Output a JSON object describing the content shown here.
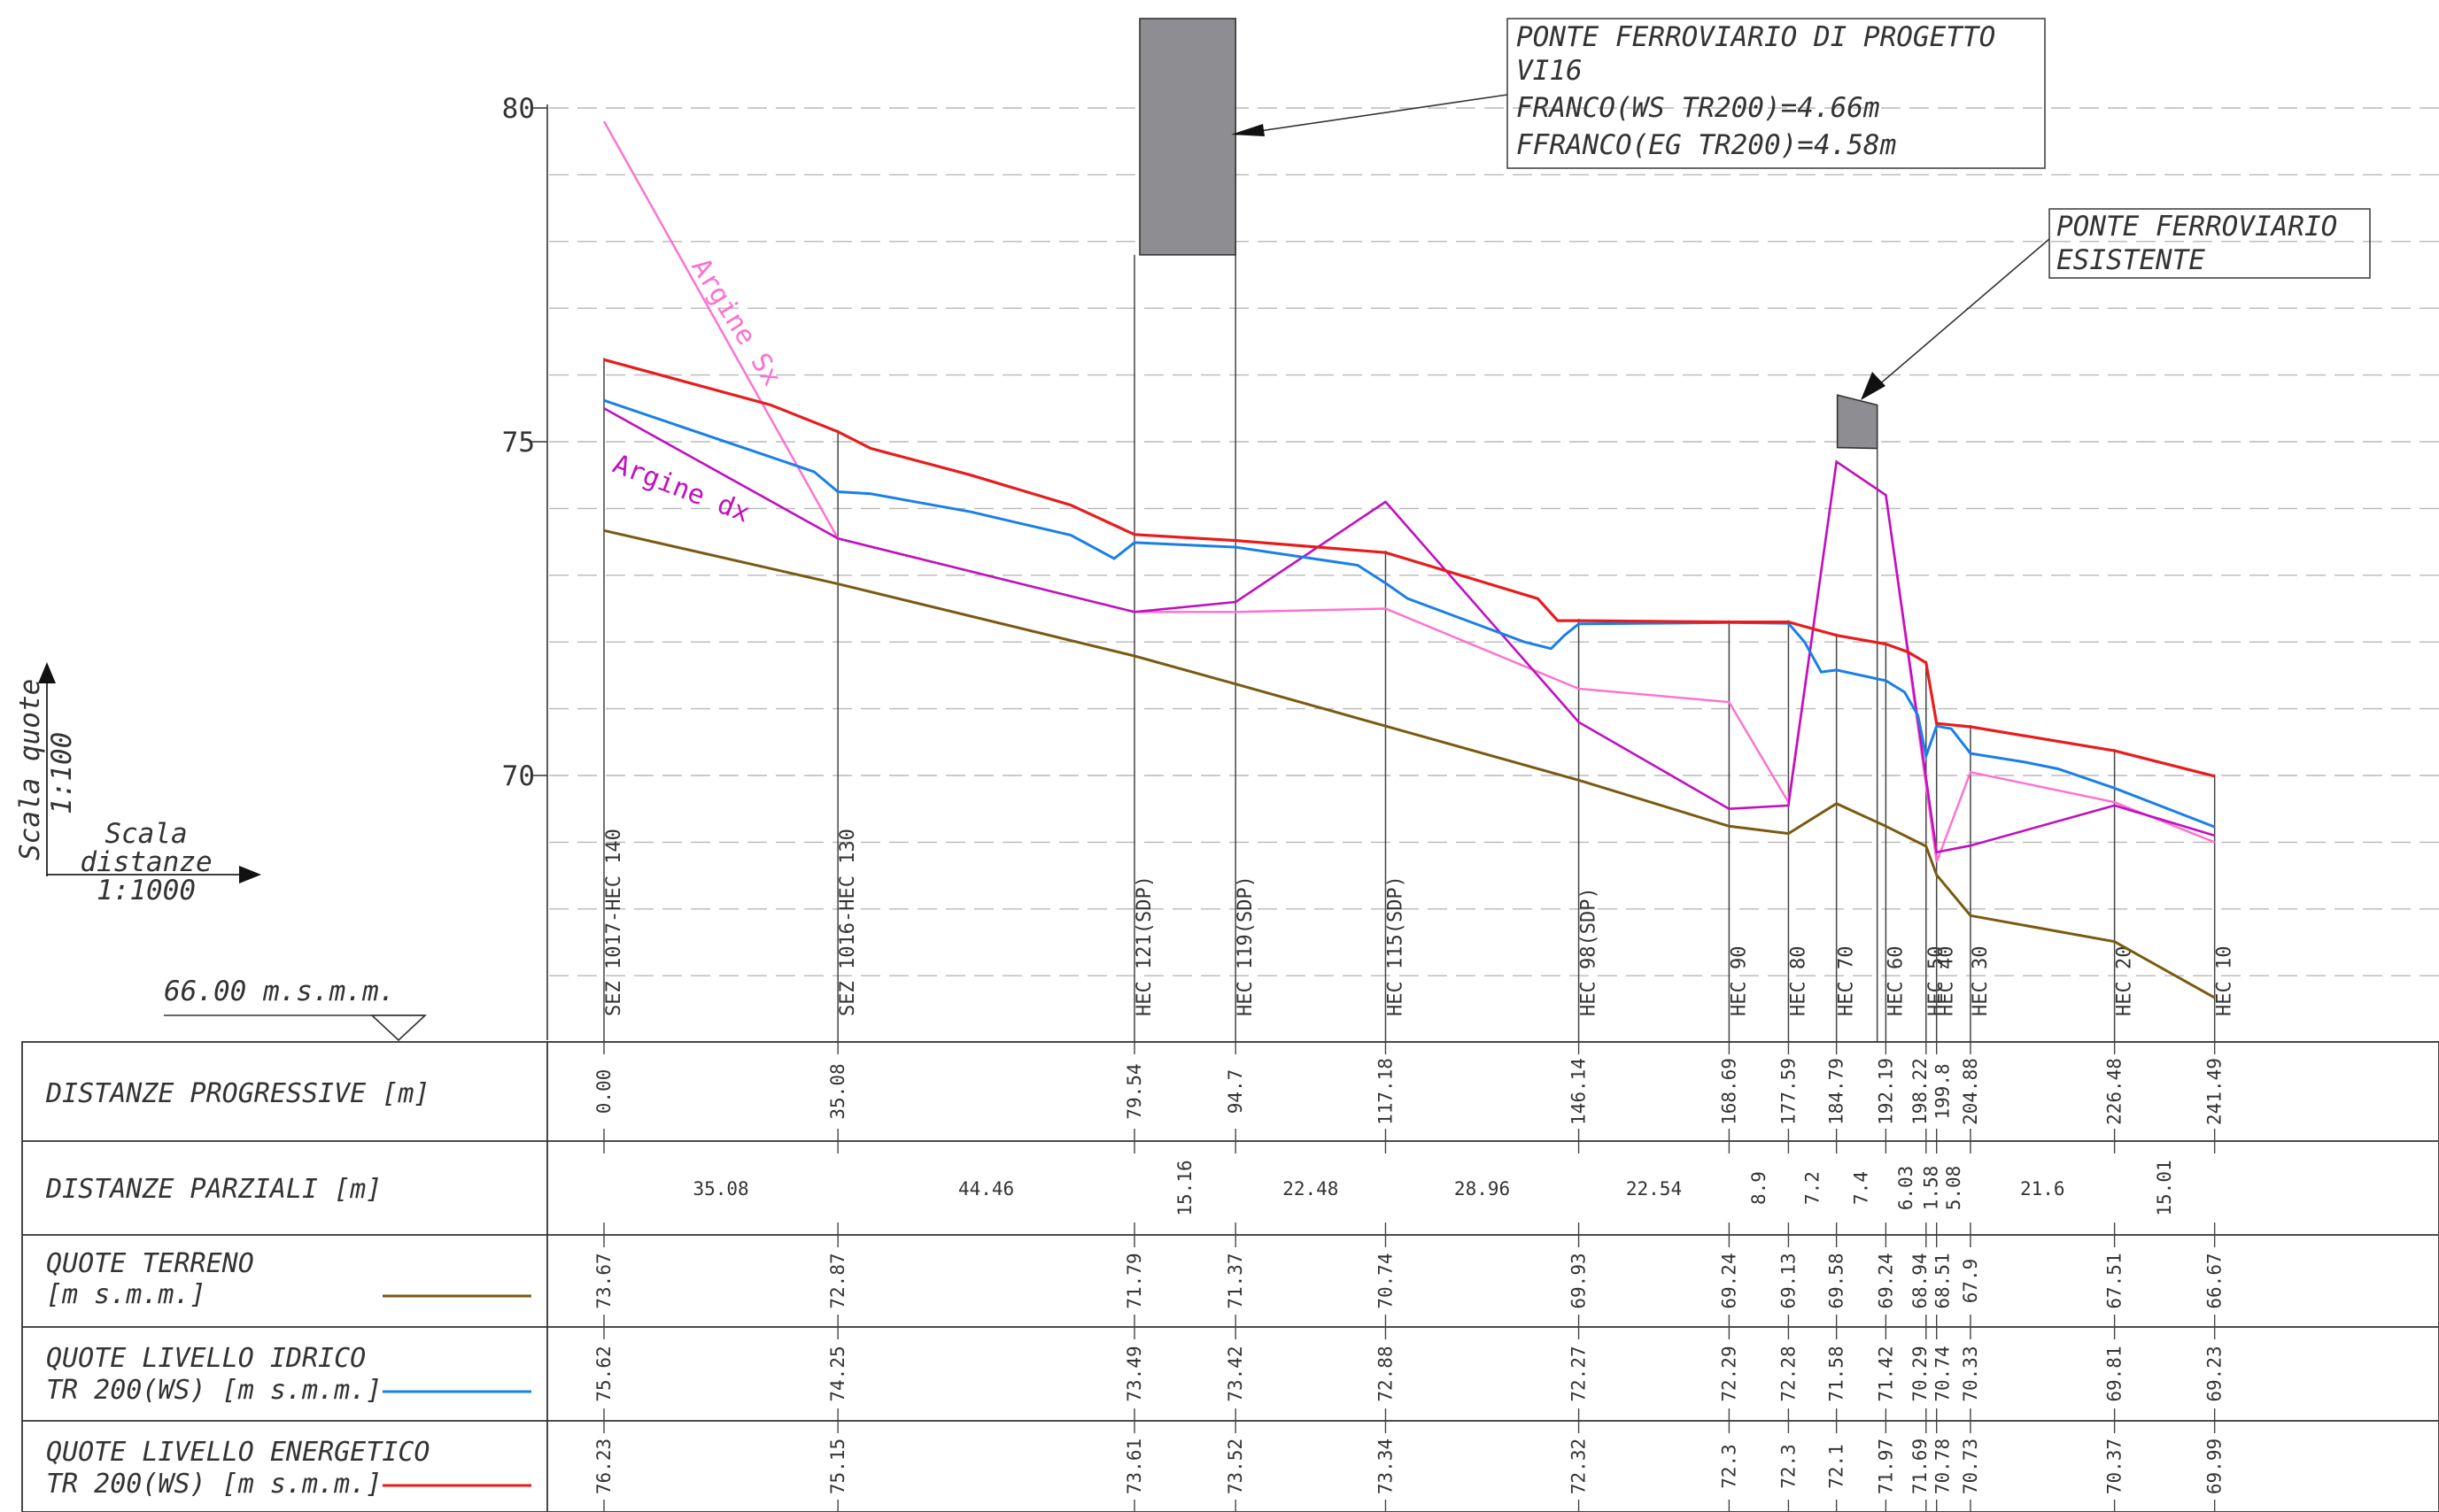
{
  "colors": {
    "terrain": "#7a5a10",
    "ws": "#1a7fe8",
    "eg": "#e81c1c",
    "argine_sx": "#ff6fcf",
    "argine_dx": "#c010c0",
    "bridge": "#8e8e92",
    "grid": "#b8b8b8"
  },
  "axis": {
    "ticks": [
      "80",
      "75",
      "70"
    ],
    "tick_values": [
      80,
      75,
      70
    ],
    "datum_label": "66.00 m.s.m.m."
  },
  "scales": {
    "vertical_label": "Scala quote",
    "vertical_ratio": "1:100",
    "horizontal_label_1": "Scala",
    "horizontal_label_2": "distanze",
    "horizontal_ratio": "1:1000"
  },
  "annotations": {
    "new_bridge": [
      "PONTE FERROVIARIO DI PROGETTO",
      "VI16",
      "FRANCO(WS TR200)=4.66m",
      "FFRANCO(EG TR200)=4.58m"
    ],
    "existing_bridge": [
      "PONTE FERROVIARIO",
      "ESISTENTE"
    ],
    "argine_sx": "Argine Sx",
    "argine_dx": "Argine dx"
  },
  "table": {
    "labels": {
      "progressive": "DISTANZE PROGRESSIVE [m]",
      "partial": "DISTANZE PARZIALI [m]",
      "terrain_1": "QUOTE TERRENO",
      "terrain_2": "[m s.m.m.]",
      "ws_1": "QUOTE LIVELLO IDRICO",
      "ws_2": "TR 200(WS) [m s.m.m.]",
      "eg_1": "QUOTE LIVELLO ENERGETICO",
      "eg_2": "TR 200(WS) [m s.m.m.]"
    },
    "partial_values": [
      "35.08",
      "44.46",
      "15.16",
      "22.48",
      "28.96",
      "22.54",
      "8.9",
      "7.2",
      "7.4",
      "6.03",
      "1.58",
      "5.08",
      "21.6",
      "15.01"
    ]
  },
  "chart_data": {
    "type": "line",
    "xlabel": "DISTANZE PROGRESSIVE [m]",
    "ylabel": "",
    "ylim": [
      66,
      80.5
    ],
    "grid": true,
    "sections": [
      {
        "name": "SEZ 1017-HEC 140",
        "x": 0.0,
        "x_label": "0.00",
        "terrain": 73.67,
        "ws": 75.62,
        "eg": 76.23
      },
      {
        "name": "SEZ 1016-HEC 130",
        "x": 35.08,
        "x_label": "35.08",
        "terrain": 72.87,
        "ws": 74.25,
        "eg": 75.15
      },
      {
        "name": "HEC 121(SDP)",
        "x": 79.54,
        "x_label": "79.54",
        "terrain": 71.79,
        "ws": 73.49,
        "eg": 73.61
      },
      {
        "name": "HEC 119(SDP)",
        "x": 94.7,
        "x_label": "94.7",
        "terrain": 71.37,
        "ws": 73.42,
        "eg": 73.52
      },
      {
        "name": "HEC 115(SDP)",
        "x": 117.18,
        "x_label": "117.18",
        "terrain": 70.74,
        "ws": 72.88,
        "eg": 73.34
      },
      {
        "name": "HEC 98(SDP)",
        "x": 146.14,
        "x_label": "146.14",
        "terrain": 69.93,
        "ws": 72.27,
        "eg": 72.32
      },
      {
        "name": "HEC 90",
        "x": 168.69,
        "x_label": "168.69",
        "terrain": 69.24,
        "ws": 72.29,
        "eg": 72.3
      },
      {
        "name": "HEC 80",
        "x": 177.59,
        "x_label": "177.59",
        "terrain": 69.13,
        "ws": 72.28,
        "eg": 72.3
      },
      {
        "name": "HEC 70",
        "x": 184.79,
        "x_label": "184.79",
        "terrain": 69.58,
        "ws": 71.58,
        "eg": 72.1
      },
      {
        "name": "HEC 60",
        "x": 192.19,
        "x_label": "192.19",
        "terrain": 69.24,
        "ws": 71.42,
        "eg": 71.97
      },
      {
        "name": "HEC 50",
        "x": 198.22,
        "x_label": "198.22",
        "terrain": 68.94,
        "ws": 70.29,
        "eg": 71.69
      },
      {
        "name": "HEC 40",
        "x": 199.8,
        "x_label": "199.8",
        "terrain": 68.51,
        "ws": 70.74,
        "eg": 70.78
      },
      {
        "name": "HEC 30",
        "x": 204.88,
        "x_label": "204.88",
        "terrain": 67.9,
        "ws": 70.33,
        "eg": 70.73
      },
      {
        "name": "HEC 20",
        "x": 226.48,
        "x_label": "226.48",
        "terrain": 67.51,
        "ws": 69.81,
        "eg": 70.37
      },
      {
        "name": "HEC 10",
        "x": 241.49,
        "x_label": "241.49",
        "terrain": 66.67,
        "ws": 69.23,
        "eg": 69.99
      }
    ],
    "ws_profile": [
      [
        0,
        75.62
      ],
      [
        31.5,
        74.55
      ],
      [
        35.08,
        74.25
      ],
      [
        40,
        74.22
      ],
      [
        55,
        73.95
      ],
      [
        70,
        73.6
      ],
      [
        76.5,
        73.25
      ],
      [
        79.54,
        73.49
      ],
      [
        94.7,
        73.42
      ],
      [
        113,
        73.15
      ],
      [
        117.18,
        72.88
      ],
      [
        120.5,
        72.65
      ],
      [
        138,
        72.0
      ],
      [
        142,
        71.9
      ],
      [
        144,
        72.1
      ],
      [
        146.14,
        72.27
      ],
      [
        168.69,
        72.29
      ],
      [
        177.59,
        72.28
      ],
      [
        180,
        72.0
      ],
      [
        182.5,
        71.55
      ],
      [
        184.79,
        71.58
      ],
      [
        192.19,
        71.42
      ],
      [
        195,
        71.25
      ],
      [
        197,
        70.9
      ],
      [
        198.22,
        70.29
      ],
      [
        199.8,
        70.74
      ],
      [
        202,
        70.7
      ],
      [
        204.88,
        70.33
      ],
      [
        213,
        70.2
      ],
      [
        218,
        70.1
      ],
      [
        226.48,
        69.81
      ],
      [
        241.49,
        69.23
      ]
    ],
    "eg_profile": [
      [
        0,
        76.23
      ],
      [
        25,
        75.55
      ],
      [
        35.08,
        75.15
      ],
      [
        40,
        74.9
      ],
      [
        55,
        74.5
      ],
      [
        70,
        74.05
      ],
      [
        79.54,
        73.61
      ],
      [
        94.7,
        73.52
      ],
      [
        117.18,
        73.34
      ],
      [
        140,
        72.65
      ],
      [
        143,
        72.32
      ],
      [
        146.14,
        72.32
      ],
      [
        168.69,
        72.3
      ],
      [
        177.59,
        72.3
      ],
      [
        184.79,
        72.1
      ],
      [
        192.19,
        71.97
      ],
      [
        195.5,
        71.85
      ],
      [
        198.22,
        71.69
      ],
      [
        199.8,
        70.78
      ],
      [
        204.88,
        70.73
      ],
      [
        226.48,
        70.37
      ],
      [
        241.49,
        69.99
      ]
    ],
    "argine_sx_profile": [
      [
        0,
        79.8
      ],
      [
        35.08,
        73.55
      ],
      [
        79.54,
        72.45
      ],
      [
        94.7,
        72.45
      ],
      [
        117.18,
        72.5
      ],
      [
        146.14,
        71.3
      ],
      [
        168.69,
        71.1
      ],
      [
        177.59,
        69.6
      ],
      [
        184.79,
        74.7
      ],
      [
        192.19,
        74.2
      ],
      [
        199.8,
        68.7
      ],
      [
        204.88,
        70.05
      ],
      [
        226.48,
        69.6
      ],
      [
        241.49,
        69.0
      ]
    ],
    "argine_dx_profile": [
      [
        0,
        75.5
      ],
      [
        35.08,
        73.55
      ],
      [
        79.54,
        72.45
      ],
      [
        94.7,
        72.6
      ],
      [
        117.18,
        74.1
      ],
      [
        146.14,
        70.8
      ],
      [
        168.69,
        69.5
      ],
      [
        177.59,
        69.55
      ],
      [
        184.79,
        74.7
      ],
      [
        192.19,
        74.2
      ],
      [
        199.8,
        68.85
      ],
      [
        204.88,
        68.95
      ],
      [
        226.48,
        69.55
      ],
      [
        241.49,
        69.1
      ]
    ],
    "new_bridge": {
      "x_start": 79.54,
      "x_end": 94.7,
      "deck_bottom": 77.8,
      "deck_top": 81.3
    },
    "existing_bridge": {
      "x_start": 184.79,
      "x_end": 190.9,
      "deck_bottom": 74.9,
      "deck_top_left": 75.7,
      "deck_top_right": 75.55
    }
  }
}
